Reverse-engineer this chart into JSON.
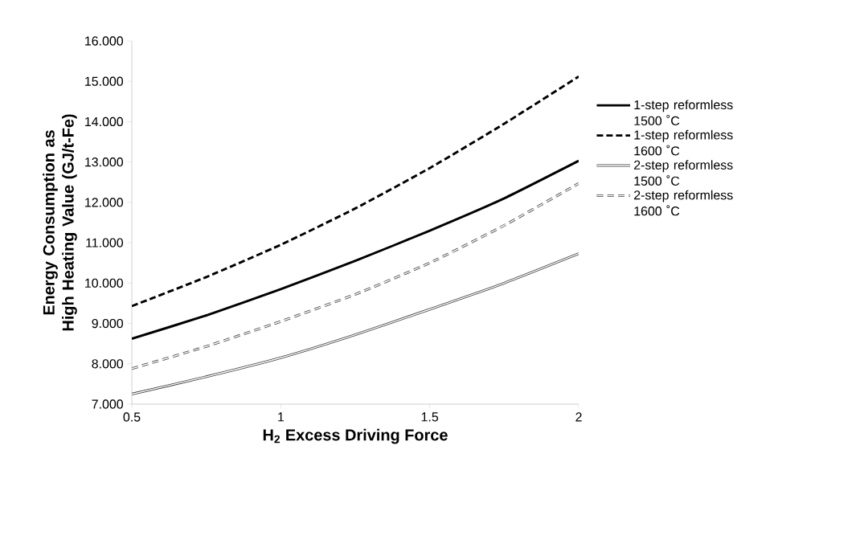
{
  "chart_data": {
    "type": "line",
    "xlabel": "H$_{2}$ Excess Driving Force",
    "ylabel": "Energy Consumption as High Heating Value (GJ/t-Fe)",
    "x": [
      0.5,
      0.75,
      1,
      1.25,
      1.5,
      1.75,
      2
    ],
    "series": [
      {
        "name": "1-step reformless 1500 ˚C",
        "color": "#000000",
        "line_style": "solid",
        "values": [
          8.62,
          9.2,
          9.85,
          10.55,
          11.3,
          12.1,
          13.03
        ]
      },
      {
        "name": "1-step reformless 1600 ˚C",
        "color": "#000000",
        "line_style": "dashed",
        "values": [
          9.43,
          10.15,
          10.95,
          11.85,
          12.85,
          13.95,
          15.12
        ]
      },
      {
        "name": "2-step reformless 1500 ˚C",
        "color": "#404040",
        "line_style": "solid",
        "values": [
          7.25,
          7.68,
          8.15,
          8.72,
          9.35,
          10.0,
          10.73
        ]
      },
      {
        "name": "2-step reformless 1600 ˚C",
        "color": "#404040",
        "line_style": "dashed",
        "values": [
          7.88,
          8.43,
          9.05,
          9.72,
          10.5,
          11.43,
          12.47
        ]
      }
    ],
    "xlim": [
      0.5,
      2
    ],
    "xticks": [
      0.5,
      1,
      1.5,
      2
    ],
    "ylim": [
      7,
      16
    ],
    "yticks": [
      {
        "value": 7,
        "label": "7.000"
      },
      {
        "value": 8,
        "label": "8.000"
      },
      {
        "value": 9,
        "label": "9.000"
      },
      {
        "value": 10,
        "label": "10.000"
      },
      {
        "value": 11,
        "label": "11.000"
      },
      {
        "value": 12,
        "label": "12.000"
      },
      {
        "value": 13,
        "label": "13.000"
      },
      {
        "value": 14,
        "label": "14.000"
      },
      {
        "value": 15,
        "label": "15.000"
      },
      {
        "value": 16,
        "label": "16.000"
      }
    ],
    "grid": false,
    "legend": "right"
  }
}
